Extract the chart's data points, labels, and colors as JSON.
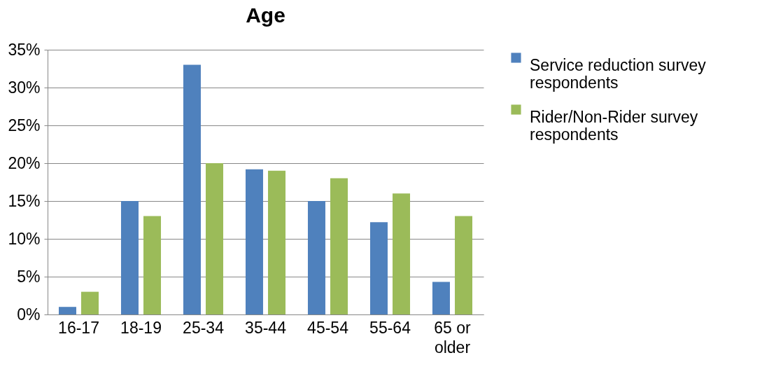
{
  "chart_data": {
    "type": "bar",
    "title": "Age",
    "categories": [
      "16-17",
      "18-19",
      "25-34",
      "35-44",
      "45-54",
      "55-64",
      "65 or older"
    ],
    "series": [
      {
        "name": "Service reduction survey respondents",
        "color": "#4f81bd",
        "values": [
          1,
          15,
          33,
          19.2,
          15,
          12.2,
          4.3
        ]
      },
      {
        "name": "Rider/Non-Rider survey respondents",
        "color": "#9bbb59",
        "values": [
          3,
          13,
          20,
          19,
          18,
          16,
          13
        ]
      }
    ],
    "ylim": [
      0,
      35
    ],
    "yticks": [
      {
        "value": 0,
        "label": "0%"
      },
      {
        "value": 5,
        "label": "5%"
      },
      {
        "value": 10,
        "label": "10%"
      },
      {
        "value": 15,
        "label": "15%"
      },
      {
        "value": 20,
        "label": "20%"
      },
      {
        "value": 25,
        "label": "25%"
      },
      {
        "value": 30,
        "label": "30%"
      },
      {
        "value": 35,
        "label": "35%"
      }
    ],
    "grid": "y",
    "legend": "right"
  }
}
